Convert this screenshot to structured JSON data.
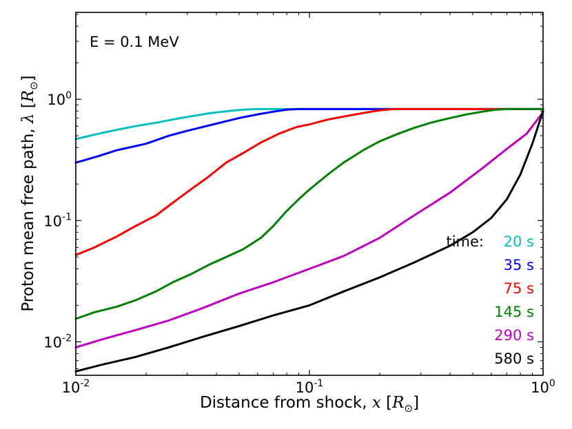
{
  "chart_data": {
    "type": "line",
    "title": "",
    "annotation": "E = 0.1 MeV",
    "xlabel": "Distance from shock, x [R⊙]",
    "xlabel_parts": {
      "text": "Distance from shock, ",
      "var": "x",
      "unit_open": " [",
      "unit": "R",
      "unit_sub": "⊙",
      "unit_close": "]"
    },
    "ylabel": "Proton mean free path, λ [R⊙]",
    "ylabel_parts": {
      "text": "Proton mean free path, ",
      "var": "λ",
      "unit_open": " [",
      "unit": "R",
      "unit_sub": "⊙",
      "unit_close": "]"
    },
    "xscale": "log",
    "yscale": "log",
    "xlim": [
      0.01,
      1
    ],
    "ylim": [
      0.0053,
      5.2
    ],
    "xticks": [
      {
        "value": 0.01,
        "base": "10",
        "exp": "-2"
      },
      {
        "value": 0.1,
        "base": "10",
        "exp": "-1"
      },
      {
        "value": 1,
        "base": "10",
        "exp": "0"
      }
    ],
    "yticks": [
      {
        "value": 0.01,
        "base": "10",
        "exp": "-2"
      },
      {
        "value": 0.1,
        "base": "10",
        "exp": "-1"
      },
      {
        "value": 1,
        "base": "10",
        "exp": "0"
      }
    ],
    "legend_title": "time:",
    "legend_position": "bottom-right",
    "series": [
      {
        "name": "20 s",
        "color": "#00bfbf",
        "x": [
          0.01,
          0.0125,
          0.015,
          0.018,
          0.022,
          0.027,
          0.032,
          0.038,
          0.045,
          0.052,
          0.06,
          0.08,
          0.1,
          0.2,
          0.5,
          1.0
        ],
        "y": [
          0.47,
          0.52,
          0.56,
          0.6,
          0.64,
          0.69,
          0.73,
          0.77,
          0.8,
          0.82,
          0.83,
          0.83,
          0.83,
          0.83,
          0.83,
          0.83
        ]
      },
      {
        "name": "35 s",
        "color": "#0000ff",
        "x": [
          0.01,
          0.0125,
          0.015,
          0.02,
          0.025,
          0.03,
          0.04,
          0.05,
          0.06,
          0.07,
          0.08,
          0.09,
          0.15,
          0.3,
          1.0
        ],
        "y": [
          0.3,
          0.34,
          0.38,
          0.43,
          0.5,
          0.55,
          0.63,
          0.7,
          0.75,
          0.79,
          0.82,
          0.83,
          0.83,
          0.83,
          0.83
        ]
      },
      {
        "name": "75 s",
        "color": "#ff0000",
        "x": [
          0.01,
          0.012,
          0.015,
          0.018,
          0.022,
          0.026,
          0.031,
          0.037,
          0.044,
          0.052,
          0.062,
          0.074,
          0.088,
          0.1,
          0.12,
          0.14,
          0.17,
          0.2,
          0.23,
          0.3,
          0.5,
          1.0
        ],
        "y": [
          0.052,
          0.06,
          0.074,
          0.09,
          0.11,
          0.14,
          0.18,
          0.23,
          0.3,
          0.36,
          0.44,
          0.52,
          0.59,
          0.62,
          0.68,
          0.72,
          0.77,
          0.81,
          0.83,
          0.83,
          0.83,
          0.83
        ]
      },
      {
        "name": "145 s",
        "color": "#008000",
        "x": [
          0.01,
          0.012,
          0.015,
          0.018,
          0.022,
          0.026,
          0.031,
          0.037,
          0.044,
          0.052,
          0.062,
          0.07,
          0.08,
          0.09,
          0.1,
          0.12,
          0.14,
          0.17,
          0.2,
          0.24,
          0.28,
          0.33,
          0.4,
          0.47,
          0.55,
          0.63,
          0.72,
          1.0
        ],
        "y": [
          0.0155,
          0.0175,
          0.0195,
          0.022,
          0.026,
          0.031,
          0.036,
          0.043,
          0.05,
          0.058,
          0.072,
          0.09,
          0.12,
          0.15,
          0.18,
          0.24,
          0.3,
          0.38,
          0.45,
          0.52,
          0.58,
          0.64,
          0.7,
          0.75,
          0.79,
          0.82,
          0.83,
          0.83
        ]
      },
      {
        "name": "290 s",
        "color": "#bf00bf",
        "x": [
          0.01,
          0.013,
          0.018,
          0.025,
          0.035,
          0.05,
          0.07,
          0.1,
          0.14,
          0.2,
          0.28,
          0.4,
          0.55,
          0.7,
          0.85,
          1.0
        ],
        "y": [
          0.009,
          0.0105,
          0.0125,
          0.015,
          0.019,
          0.025,
          0.031,
          0.04,
          0.051,
          0.072,
          0.11,
          0.17,
          0.27,
          0.39,
          0.52,
          0.78
        ]
      },
      {
        "name": "580 s",
        "color": "#000000",
        "x": [
          0.01,
          0.013,
          0.018,
          0.025,
          0.035,
          0.05,
          0.07,
          0.1,
          0.14,
          0.2,
          0.28,
          0.4,
          0.5,
          0.6,
          0.7,
          0.8,
          0.9,
          1.0
        ],
        "y": [
          0.0057,
          0.0065,
          0.0075,
          0.009,
          0.011,
          0.0135,
          0.0165,
          0.02,
          0.026,
          0.034,
          0.045,
          0.062,
          0.08,
          0.105,
          0.15,
          0.24,
          0.43,
          0.8
        ]
      }
    ]
  }
}
